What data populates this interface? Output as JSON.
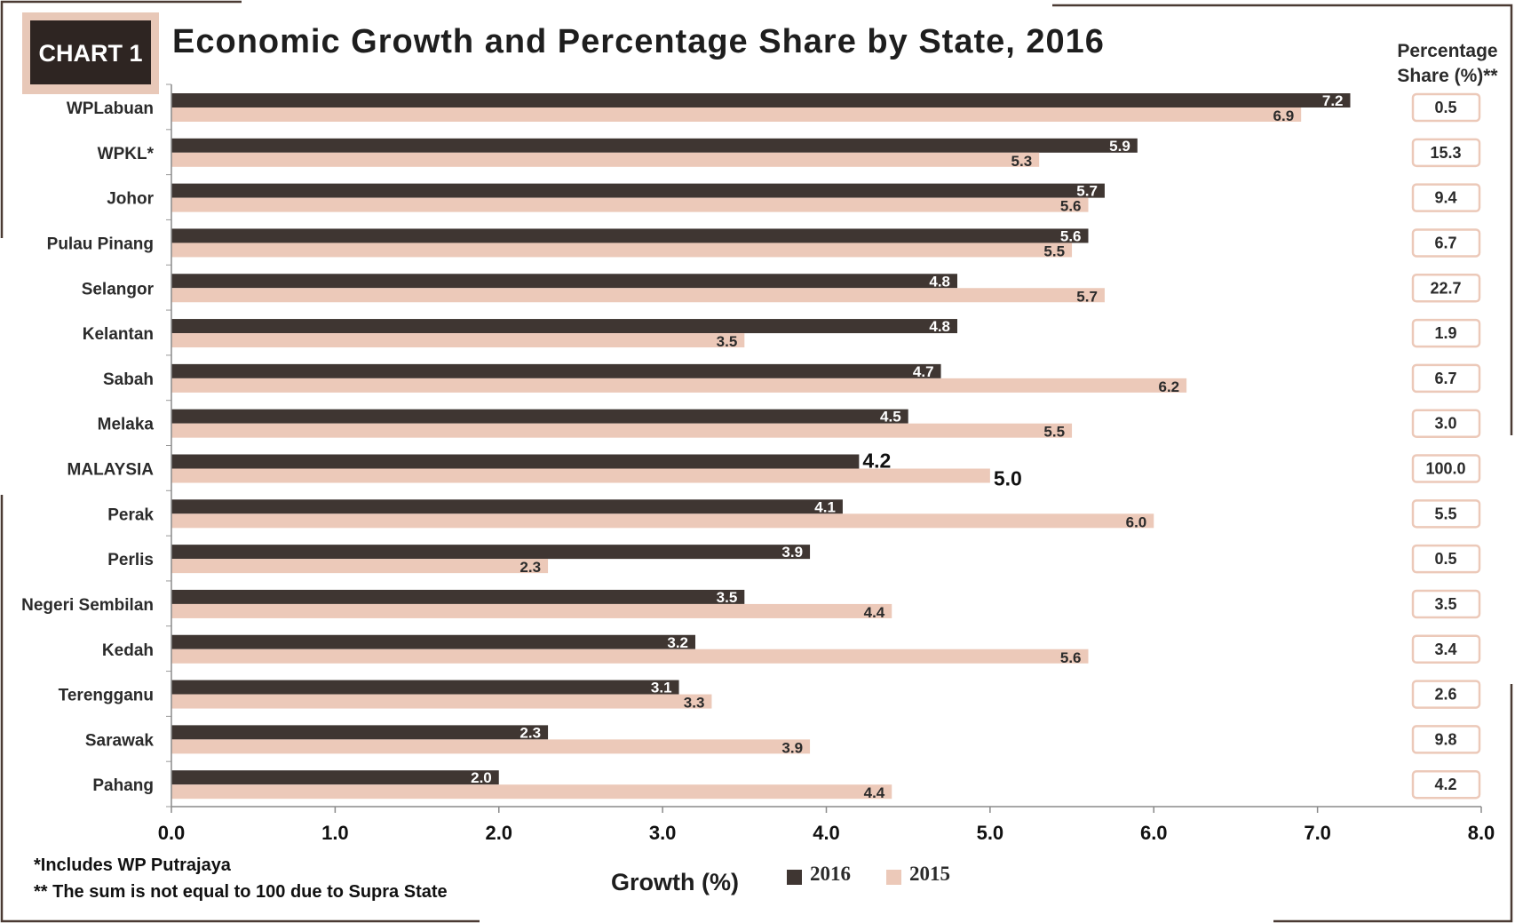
{
  "header": {
    "badge": "CHART 1",
    "title": "Economic Growth and Percentage Share by State, 2016"
  },
  "share_header": [
    "Percentage",
    "Share (%)**"
  ],
  "footnotes": [
    "*Includes WP Putrajaya",
    "** The sum is not equal to 100 due to Supra State"
  ],
  "colors": {
    "series_2016": "#3f3632",
    "series_2015": "#ecc9b9",
    "frame": "#4a3a33",
    "badge_border": "#e8c8b8",
    "badge_fill": "#2e2522",
    "share_box_border": "#ecc9b9"
  },
  "chart_data": {
    "type": "bar",
    "orientation": "horizontal",
    "title": "Economic Growth and Percentage Share by State, 2016",
    "xlabel": "Growth (%)",
    "ylabel": "",
    "xlim": [
      0,
      8
    ],
    "x_ticks": [
      "0.0",
      "1.0",
      "2.0",
      "3.0",
      "4.0",
      "5.0",
      "6.0",
      "7.0",
      "8.0"
    ],
    "grid": false,
    "legend_position": "bottom-center",
    "categories": [
      "WPLabuan",
      "WPKL*",
      "Johor",
      "Pulau Pinang",
      "Selangor",
      "Kelantan",
      "Sabah",
      "Melaka",
      "MALAYSIA",
      "Perak",
      "Perlis",
      "Negeri Sembilan",
      "Kedah",
      "Terengganu",
      "Sarawak",
      "Pahang"
    ],
    "series": [
      {
        "name": "2016",
        "values": [
          7.2,
          5.9,
          5.7,
          5.6,
          4.8,
          4.8,
          4.7,
          4.5,
          4.2,
          4.1,
          3.9,
          3.5,
          3.2,
          3.1,
          2.3,
          2.0
        ]
      },
      {
        "name": "2015",
        "values": [
          6.9,
          5.3,
          5.6,
          5.5,
          5.7,
          3.5,
          6.2,
          5.5,
          5.0,
          6.0,
          2.3,
          4.4,
          5.6,
          3.3,
          3.9,
          4.4
        ]
      }
    ],
    "percentage_share": [
      "0.5",
      "15.3",
      "9.4",
      "6.7",
      "22.7",
      "1.9",
      "6.7",
      "3.0",
      "100.0",
      "5.5",
      "0.5",
      "3.5",
      "3.4",
      "2.6",
      "9.8",
      "4.2"
    ],
    "highlight_category": "MALAYSIA"
  }
}
